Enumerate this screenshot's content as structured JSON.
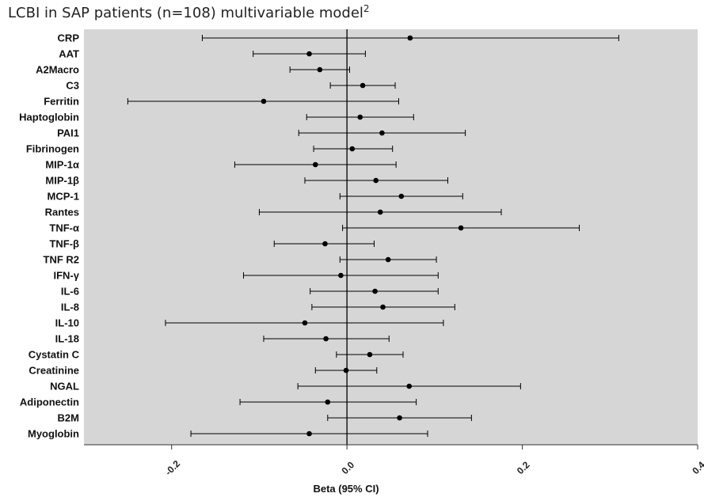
{
  "title": {
    "main": "LCBI in SAP patients (n=108) multivariable model",
    "superscript": "2"
  },
  "colors": {
    "plot_background": "#d6d6d6",
    "marker": "#000000",
    "line": "#000000"
  },
  "chart_data": {
    "type": "forest",
    "title": "LCBI in SAP patients (n=108) multivariable model",
    "xlabel": "Beta (95% CI)",
    "ylabel": "",
    "xlim": [
      -0.3,
      0.4
    ],
    "xticks": [
      -0.2,
      0.0,
      0.2,
      0.4
    ],
    "xtick_labels": [
      "-0.2",
      "0.0",
      "0.2",
      "0.4"
    ],
    "reference_line": 0.0,
    "grid": false,
    "rows": [
      {
        "label": "CRP",
        "estimate": 0.072,
        "lower": -0.165,
        "upper": 0.31
      },
      {
        "label": "AAT",
        "estimate": -0.043,
        "lower": -0.107,
        "upper": 0.021
      },
      {
        "label": "A2Macro",
        "estimate": -0.031,
        "lower": -0.065,
        "upper": 0.003
      },
      {
        "label": "C3",
        "estimate": 0.018,
        "lower": -0.019,
        "upper": 0.055
      },
      {
        "label": "Ferritin",
        "estimate": -0.095,
        "lower": -0.25,
        "upper": 0.059
      },
      {
        "label": "Haptoglobin",
        "estimate": 0.015,
        "lower": -0.046,
        "upper": 0.076
      },
      {
        "label": "PAI1",
        "estimate": 0.04,
        "lower": -0.055,
        "upper": 0.135
      },
      {
        "label": "Fibrinogen",
        "estimate": 0.006,
        "lower": -0.038,
        "upper": 0.052
      },
      {
        "label": "MIP-1α",
        "estimate": -0.036,
        "lower": -0.128,
        "upper": 0.056
      },
      {
        "label": "MIP-1β",
        "estimate": 0.033,
        "lower": -0.048,
        "upper": 0.115
      },
      {
        "label": "MCP-1",
        "estimate": 0.062,
        "lower": -0.008,
        "upper": 0.132
      },
      {
        "label": "Rantes",
        "estimate": 0.038,
        "lower": -0.1,
        "upper": 0.176
      },
      {
        "label": "TNF-α",
        "estimate": 0.13,
        "lower": -0.005,
        "upper": 0.265
      },
      {
        "label": "TNF-β",
        "estimate": -0.025,
        "lower": -0.083,
        "upper": 0.031
      },
      {
        "label": "TNF R2",
        "estimate": 0.047,
        "lower": -0.008,
        "upper": 0.102
      },
      {
        "label": "IFN-γ",
        "estimate": -0.007,
        "lower": -0.118,
        "upper": 0.104
      },
      {
        "label": "IL-6",
        "estimate": 0.032,
        "lower": -0.042,
        "upper": 0.104
      },
      {
        "label": "IL-8",
        "estimate": 0.041,
        "lower": -0.04,
        "upper": 0.123
      },
      {
        "label": "IL-10",
        "estimate": -0.048,
        "lower": -0.207,
        "upper": 0.11
      },
      {
        "label": "IL-18",
        "estimate": -0.024,
        "lower": -0.095,
        "upper": 0.048
      },
      {
        "label": "Cystatin C",
        "estimate": 0.026,
        "lower": -0.012,
        "upper": 0.064
      },
      {
        "label": "Creatinine",
        "estimate": -0.001,
        "lower": -0.036,
        "upper": 0.034
      },
      {
        "label": "NGAL",
        "estimate": 0.071,
        "lower": -0.056,
        "upper": 0.198
      },
      {
        "label": "Adiponectin",
        "estimate": -0.022,
        "lower": -0.122,
        "upper": 0.079
      },
      {
        "label": "B2M",
        "estimate": 0.06,
        "lower": -0.022,
        "upper": 0.142
      },
      {
        "label": "Myoglobin",
        "estimate": -0.043,
        "lower": -0.178,
        "upper": 0.092
      }
    ]
  }
}
